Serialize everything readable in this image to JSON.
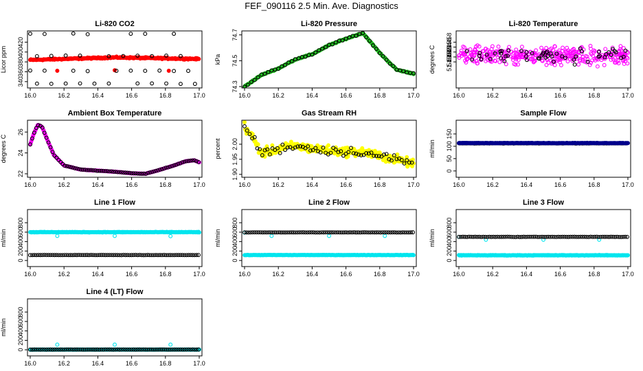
{
  "page_title": "FEF_090116  2.5 Min. Ave. Diagnostics",
  "chart_data": [
    {
      "type": "scatter",
      "title": "Li-820 CO2",
      "ylabel": "Licor ppm",
      "xlim": [
        16.0,
        17.0
      ],
      "ylim": [
        330,
        440
      ],
      "x_ticks": [
        16.0,
        16.2,
        16.4,
        16.6,
        16.8,
        17.0
      ],
      "x_tick_labels": [
        "16.0",
        "16.2",
        "16.4",
        "16.6",
        "16.8",
        "17.0"
      ],
      "y_ticks": [
        340,
        360,
        380,
        400,
        420
      ],
      "y_tick_labels": [
        "340",
        "360",
        "380",
        "400",
        "420"
      ],
      "series": [
        {
          "color": "#ff0000",
          "marker": "filled",
          "generator": "dense",
          "y_start": 384,
          "y_peak": 389,
          "y_end": 386,
          "noise": 2
        },
        {
          "color": "#ff0000",
          "marker": "filled",
          "generator": "points",
          "points": [
            [
              16.16,
              362
            ],
            [
              16.5,
              363
            ],
            [
              16.82,
              362
            ]
          ]
        },
        {
          "color": "#000000",
          "marker": "ring",
          "generator": "grid_rows",
          "rows": [
            437,
            392,
            362,
            336
          ],
          "step": 0.085
        }
      ]
    },
    {
      "type": "scatter",
      "title": "Li-820 Pressure",
      "ylabel": "kPa",
      "xlim": [
        16.0,
        17.0
      ],
      "ylim": [
        74.3,
        74.72
      ],
      "x_ticks": [
        16.0,
        16.2,
        16.4,
        16.6,
        16.8,
        17.0
      ],
      "x_tick_labels": [
        "16.0",
        "16.2",
        "16.4",
        "16.6",
        "16.8",
        "17.0"
      ],
      "y_ticks": [
        74.3,
        74.5,
        74.7
      ],
      "y_tick_labels": [
        "74.3",
        "74.5",
        "74.7"
      ],
      "series": [
        {
          "color": "#22bb22",
          "marker": "filled",
          "generator": "keys",
          "noise": 0.006,
          "keys": [
            [
              16.0,
              74.3
            ],
            [
              16.1,
              74.39
            ],
            [
              16.2,
              74.44
            ],
            [
              16.3,
              74.51
            ],
            [
              16.4,
              74.55
            ],
            [
              16.5,
              74.62
            ],
            [
              16.6,
              74.67
            ],
            [
              16.7,
              74.715
            ],
            [
              16.8,
              74.56
            ],
            [
              16.9,
              74.43
            ],
            [
              17.0,
              74.4
            ]
          ]
        },
        {
          "color": "#000000",
          "marker": "ring",
          "generator": "keys_sparse",
          "noise": 0.007,
          "step": 0.02,
          "keys": [
            [
              16.0,
              74.3
            ],
            [
              16.1,
              74.39
            ],
            [
              16.2,
              74.44
            ],
            [
              16.3,
              74.51
            ],
            [
              16.4,
              74.55
            ],
            [
              16.5,
              74.62
            ],
            [
              16.6,
              74.67
            ],
            [
              16.7,
              74.715
            ],
            [
              16.8,
              74.56
            ],
            [
              16.9,
              74.43
            ],
            [
              17.0,
              74.4
            ]
          ]
        }
      ]
    },
    {
      "type": "scatter",
      "title": "Li-820 Temperature",
      "ylabel": "degrees C",
      "xlim": [
        16.0,
        17.0
      ],
      "ylim": [
        51.44,
        51.462
      ],
      "x_ticks": [
        16.0,
        16.2,
        16.4,
        16.6,
        16.8,
        17.0
      ],
      "x_tick_labels": [
        "16.0",
        "16.2",
        "16.4",
        "16.6",
        "16.8",
        "17.0"
      ],
      "y_ticks": [
        51.45,
        51.452,
        51.454,
        51.456,
        51.458
      ],
      "y_tick_labels": [
        "51.450",
        "51.452",
        "51.454",
        "51.456",
        "51.458"
      ],
      "series": [
        {
          "color": "#ff00ff",
          "marker": "ring",
          "generator": "cloud",
          "n": 380,
          "center": 51.4525,
          "spread": 0.0052
        },
        {
          "color": "#000000",
          "marker": "ring",
          "generator": "cloud",
          "n": 55,
          "center": 51.4525,
          "spread": 0.004
        }
      ]
    },
    {
      "type": "scatter",
      "title": "Ambient Box Temperature",
      "ylabel": "degrees C",
      "xlim": [
        16.0,
        17.0
      ],
      "ylim": [
        21.8,
        27.0
      ],
      "x_ticks": [
        16.0,
        16.2,
        16.4,
        16.6,
        16.8,
        17.0
      ],
      "x_tick_labels": [
        "16.0",
        "16.2",
        "16.4",
        "16.6",
        "16.8",
        "17.0"
      ],
      "y_ticks": [
        22,
        24,
        26
      ],
      "y_tick_labels": [
        "22",
        "24",
        "26"
      ],
      "series": [
        {
          "color": "#ff00ff",
          "marker": "filled",
          "generator": "keys",
          "noise": 0.02,
          "keys": [
            [
              16.0,
              24.8
            ],
            [
              16.02,
              25.8
            ],
            [
              16.045,
              26.7
            ],
            [
              16.07,
              26.5
            ],
            [
              16.1,
              25.3
            ],
            [
              16.14,
              23.8
            ],
            [
              16.2,
              22.8
            ],
            [
              16.3,
              22.4
            ],
            [
              16.4,
              22.3
            ],
            [
              16.5,
              22.2
            ],
            [
              16.6,
              22.05
            ],
            [
              16.68,
              22.0
            ],
            [
              16.75,
              22.3
            ],
            [
              16.85,
              22.8
            ],
            [
              16.92,
              23.2
            ],
            [
              16.97,
              23.3
            ],
            [
              17.0,
              23.1
            ]
          ]
        },
        {
          "color": "#000000",
          "marker": "ring",
          "generator": "keys_sparse",
          "noise": 0.03,
          "step": 0.012,
          "keys": [
            [
              16.0,
              24.8
            ],
            [
              16.02,
              25.8
            ],
            [
              16.045,
              26.7
            ],
            [
              16.07,
              26.5
            ],
            [
              16.1,
              25.3
            ],
            [
              16.14,
              23.8
            ],
            [
              16.2,
              22.8
            ],
            [
              16.3,
              22.4
            ],
            [
              16.4,
              22.3
            ],
            [
              16.5,
              22.2
            ],
            [
              16.6,
              22.05
            ],
            [
              16.68,
              22.0
            ],
            [
              16.75,
              22.3
            ],
            [
              16.85,
              22.8
            ],
            [
              16.92,
              23.2
            ],
            [
              16.97,
              23.3
            ],
            [
              17.0,
              23.1
            ]
          ]
        }
      ]
    },
    {
      "type": "scatter",
      "title": "Gas Stream RH",
      "ylabel": "percent",
      "xlim": [
        16.0,
        17.0
      ],
      "ylim": [
        1.895,
        2.075
      ],
      "x_ticks": [
        16.0,
        16.2,
        16.4,
        16.6,
        16.8,
        17.0
      ],
      "x_tick_labels": [
        "16.0",
        "16.2",
        "16.4",
        "16.6",
        "16.8",
        "17.0"
      ],
      "y_ticks": [
        1.9,
        1.95,
        2.0
      ],
      "y_tick_labels": [
        "1.90",
        "1.95",
        "2.00"
      ],
      "series": [
        {
          "color": "#ffff00",
          "marker": "filled",
          "generator": "keys",
          "noise": 0.022,
          "keys": [
            [
              16.0,
              2.06
            ],
            [
              16.05,
              2.02
            ],
            [
              16.1,
              1.97
            ],
            [
              16.2,
              1.985
            ],
            [
              16.3,
              1.995
            ],
            [
              16.4,
              1.985
            ],
            [
              16.5,
              1.98
            ],
            [
              16.6,
              1.975
            ],
            [
              16.7,
              1.975
            ],
            [
              16.8,
              1.96
            ],
            [
              16.9,
              1.95
            ],
            [
              17.0,
              1.935
            ]
          ]
        },
        {
          "color": "#000000",
          "marker": "ring",
          "generator": "keys_sparse",
          "noise": 0.022,
          "step": 0.015,
          "keys": [
            [
              16.0,
              2.06
            ],
            [
              16.05,
              2.02
            ],
            [
              16.1,
              1.97
            ],
            [
              16.2,
              1.985
            ],
            [
              16.3,
              1.995
            ],
            [
              16.4,
              1.985
            ],
            [
              16.5,
              1.98
            ],
            [
              16.6,
              1.975
            ],
            [
              16.7,
              1.975
            ],
            [
              16.8,
              1.96
            ],
            [
              16.9,
              1.95
            ],
            [
              17.0,
              1.935
            ]
          ]
        }
      ]
    },
    {
      "type": "scatter",
      "title": "Sample Flow",
      "ylabel": "ml/min",
      "xlim": [
        16.0,
        17.0
      ],
      "ylim": [
        -20,
        200
      ],
      "x_ticks": [
        16.0,
        16.2,
        16.4,
        16.6,
        16.8,
        17.0
      ],
      "x_tick_labels": [
        "16.0",
        "16.2",
        "16.4",
        "16.6",
        "16.8",
        "17.0"
      ],
      "y_ticks": [
        0,
        50,
        100,
        150
      ],
      "y_tick_labels": [
        "0",
        "50",
        "100",
        "150"
      ],
      "series": [
        {
          "color": "#000000",
          "marker": "ring",
          "generator": "flat",
          "y": 112,
          "noise": 1.2,
          "step": 0.006
        },
        {
          "color": "#00008b",
          "marker": "filled",
          "generator": "flat",
          "y": 113,
          "noise": 1,
          "step": 0.004
        }
      ]
    },
    {
      "type": "scatter",
      "title": "Line 1 Flow",
      "ylabel": "ml/min",
      "xlim": [
        16.0,
        17.0
      ],
      "ylim": [
        -100,
        1050
      ],
      "x_ticks": [
        16.0,
        16.2,
        16.4,
        16.6,
        16.8,
        17.0
      ],
      "x_tick_labels": [
        "16.0",
        "16.2",
        "16.4",
        "16.6",
        "16.8",
        "17.0"
      ],
      "y_ticks": [
        0,
        200,
        400,
        600,
        800
      ],
      "y_tick_labels": [
        "0",
        "200",
        "400",
        "600",
        "800"
      ],
      "series": [
        {
          "color": "#00e5ee",
          "marker": "filled",
          "generator": "flat",
          "y": 600,
          "noise": 8,
          "step": 0.004
        },
        {
          "color": "#00e5ee",
          "marker": "ring",
          "generator": "points",
          "points": [
            [
              16.16,
              520
            ],
            [
              16.5,
              520
            ],
            [
              16.83,
              515
            ]
          ]
        },
        {
          "color": "#000000",
          "marker": "ring",
          "generator": "flat",
          "y": 115,
          "noise": 3,
          "step": 0.012
        }
      ]
    },
    {
      "type": "scatter",
      "title": "Line 2 Flow",
      "ylabel": "ml/min",
      "xlim": [
        16.0,
        17.0
      ],
      "ylim": [
        -100,
        1050
      ],
      "x_ticks": [
        16.0,
        16.2,
        16.4,
        16.6,
        16.8,
        17.0
      ],
      "x_tick_labels": [
        "16.0",
        "16.2",
        "16.4",
        "16.6",
        "16.8",
        "17.0"
      ],
      "y_ticks": [
        0,
        200,
        400,
        600,
        800
      ],
      "y_tick_labels": [
        "0",
        "200",
        "400",
        "600",
        "800"
      ],
      "series": [
        {
          "color": "#00e5ee",
          "marker": "filled",
          "generator": "flat",
          "y": 115,
          "noise": 5,
          "step": 0.004
        },
        {
          "color": "#00e5ee",
          "marker": "ring",
          "generator": "points",
          "points": [
            [
              16.0,
              590
            ],
            [
              16.16,
              520
            ],
            [
              16.5,
              520
            ],
            [
              16.83,
              520
            ]
          ]
        },
        {
          "color": "#000000",
          "marker": "ring",
          "generator": "flat",
          "y": 595,
          "noise": 4,
          "step": 0.012
        }
      ]
    },
    {
      "type": "scatter",
      "title": "Line 3 Flow",
      "ylabel": "ml/min",
      "xlim": [
        16.0,
        17.0
      ],
      "ylim": [
        -100,
        1050
      ],
      "x_ticks": [
        16.0,
        16.2,
        16.4,
        16.6,
        16.8,
        17.0
      ],
      "x_tick_labels": [
        "16.0",
        "16.2",
        "16.4",
        "16.6",
        "16.8",
        "17.0"
      ],
      "y_ticks": [
        0,
        200,
        400,
        600,
        800
      ],
      "y_tick_labels": [
        "0",
        "200",
        "400",
        "600",
        "800"
      ],
      "series": [
        {
          "color": "#00e5ee",
          "marker": "filled",
          "generator": "flat",
          "y": 110,
          "noise": 8,
          "step": 0.004
        },
        {
          "color": "#00e5ee",
          "marker": "ring",
          "generator": "points",
          "points": [
            [
              16.0,
              500
            ],
            [
              16.16,
              440
            ],
            [
              16.5,
              440
            ],
            [
              16.83,
              440
            ]
          ]
        },
        {
          "color": "#000000",
          "marker": "ring",
          "generator": "flat",
          "y": 500,
          "noise": 5,
          "step": 0.012
        }
      ]
    },
    {
      "type": "scatter",
      "title": "Line 4 (LT) Flow",
      "ylabel": "ml/min",
      "xlim": [
        16.0,
        17.0
      ],
      "ylim": [
        -100,
        1050
      ],
      "x_ticks": [
        16.0,
        16.2,
        16.4,
        16.6,
        16.8,
        17.0
      ],
      "x_tick_labels": [
        "16.0",
        "16.2",
        "16.4",
        "16.6",
        "16.8",
        "17.0"
      ],
      "y_ticks": [
        0,
        200,
        400,
        600,
        800
      ],
      "y_tick_labels": [
        "0",
        "200",
        "400",
        "600",
        "800"
      ],
      "series": [
        {
          "color": "#00e5ee",
          "marker": "filled",
          "generator": "flat",
          "y": 5,
          "noise": 2,
          "step": 0.004
        },
        {
          "color": "#00e5ee",
          "marker": "ring",
          "generator": "points",
          "points": [
            [
              16.16,
              110
            ],
            [
              16.5,
              110
            ],
            [
              16.83,
              110
            ]
          ]
        },
        {
          "color": "#000000",
          "marker": "ring",
          "generator": "flat",
          "y": 5,
          "noise": 2,
          "step": 0.012
        }
      ]
    }
  ]
}
